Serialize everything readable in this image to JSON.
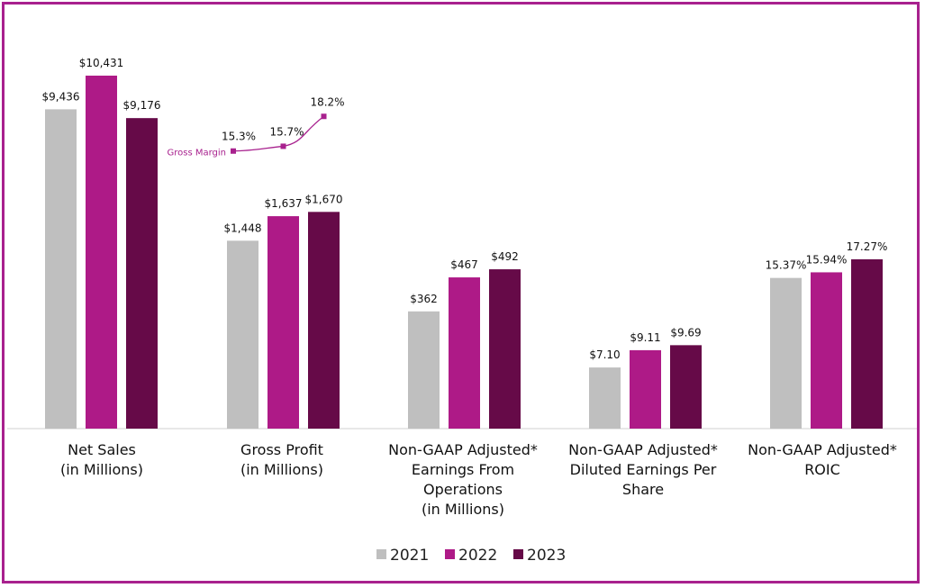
{
  "chart_data": {
    "type": "bar",
    "title": "",
    "xlabel": "",
    "ylabel": "",
    "grid": false,
    "legend_position": "bottom",
    "colors": {
      "2021": "#bfbfbf",
      "2022": "#ae1a87",
      "2023": "#660a48",
      "line": "#a8218e",
      "frame": "#a8218e"
    },
    "categories": [
      [
        "Net Sales",
        "(in Millions)"
      ],
      [
        "Gross Profit",
        "(in Millions)"
      ],
      [
        "Non-GAAP Adjusted*",
        "Earnings From",
        "Operations",
        "(in Millions)"
      ],
      [
        "Non-GAAP Adjusted*",
        "Diluted Earnings Per",
        "Share"
      ],
      [
        "Non-GAAP Adjusted*",
        "ROIC"
      ]
    ],
    "series": [
      {
        "name": "2021",
        "labels": [
          "$9,436",
          "$1,448",
          "$362",
          "$7.10",
          "15.37%"
        ]
      },
      {
        "name": "2022",
        "labels": [
          "$10,431",
          "$1,637",
          "$467",
          "$9.11",
          "15.94%"
        ]
      },
      {
        "name": "2023",
        "labels": [
          "$9,176",
          "$1,670",
          "$492",
          "$9.69",
          "17.27%"
        ]
      }
    ],
    "group_value_ranges": [
      [
        0,
        10431
      ],
      [
        0,
        2720
      ],
      [
        0,
        1090
      ],
      [
        0,
        41
      ],
      [
        0,
        36
      ]
    ],
    "group_values": [
      [
        9436,
        10431,
        9176
      ],
      [
        1448,
        1637,
        1670
      ],
      [
        362,
        467,
        492
      ],
      [
        7.1,
        9.11,
        9.69
      ],
      [
        15.37,
        15.94,
        17.27
      ]
    ],
    "gross_margin": {
      "name": "Gross Margin",
      "labels": [
        "15.3%",
        "15.7%",
        "18.2%"
      ],
      "values": [
        15.3,
        15.7,
        18.2
      ],
      "range": [
        14.0,
        19.5
      ]
    }
  }
}
